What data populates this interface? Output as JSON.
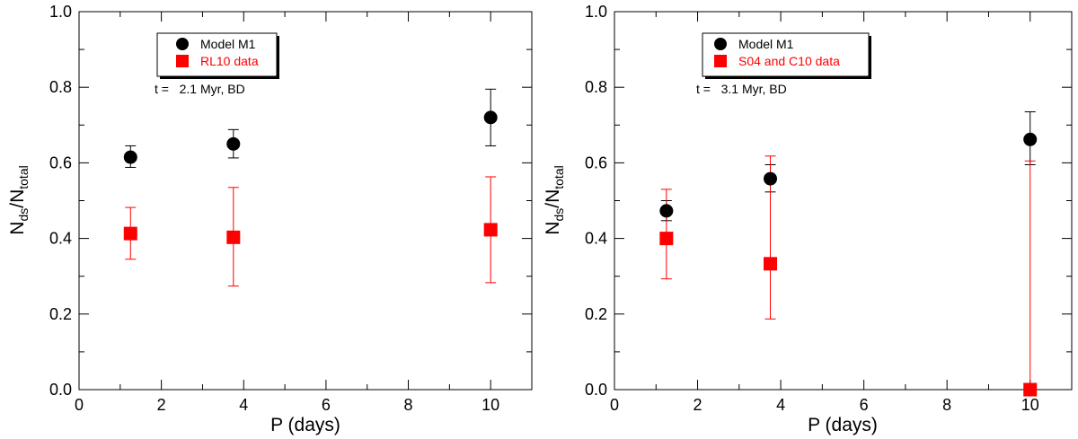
{
  "chart_data": [
    {
      "type": "scatter",
      "title": "",
      "xlabel": "P (days)",
      "ylabel": {
        "base": "N",
        "sub1": "ds",
        "sep": "/N",
        "sub2": "total"
      },
      "xlim": [
        0,
        11
      ],
      "ylim": [
        0,
        1.0
      ],
      "x_ticks": [
        "0",
        "2",
        "4",
        "6",
        "8",
        "10"
      ],
      "y_ticks": [
        "0.0",
        "0.2",
        "0.4",
        "0.6",
        "0.8",
        "1.0"
      ],
      "grid": false,
      "legend_position": "top-left",
      "annotation": "t =   2.1 Myr, BD",
      "series": [
        {
          "name": "Model M1",
          "marker": "circle",
          "color": "#000000",
          "points": [
            {
              "x": 1.25,
              "y": 0.615,
              "err_low": 0.588,
              "err_high": 0.645
            },
            {
              "x": 3.75,
              "y": 0.65,
              "err_low": 0.613,
              "err_high": 0.688
            },
            {
              "x": 10.0,
              "y": 0.72,
              "err_low": 0.645,
              "err_high": 0.795
            }
          ]
        },
        {
          "name": "RL10 data",
          "marker": "square",
          "color": "#ff0000",
          "points": [
            {
              "x": 1.25,
              "y": 0.413,
              "err_low": 0.345,
              "err_high": 0.482
            },
            {
              "x": 3.75,
              "y": 0.403,
              "err_low": 0.274,
              "err_high": 0.535
            },
            {
              "x": 10.0,
              "y": 0.423,
              "err_low": 0.283,
              "err_high": 0.563
            }
          ]
        }
      ]
    },
    {
      "type": "scatter",
      "title": "",
      "xlabel": "P (days)",
      "ylabel": {
        "base": "N",
        "sub1": "ds",
        "sep": "/N",
        "sub2": "total"
      },
      "xlim": [
        0,
        11
      ],
      "ylim": [
        0,
        1.0
      ],
      "x_ticks": [
        "0",
        "2",
        "4",
        "6",
        "8",
        "10"
      ],
      "y_ticks": [
        "0.0",
        "0.2",
        "0.4",
        "0.6",
        "0.8",
        "1.0"
      ],
      "grid": false,
      "legend_position": "top-left",
      "annotation": "t =   3.1 Myr, BD",
      "series": [
        {
          "name": "Model M1",
          "marker": "circle",
          "color": "#000000",
          "points": [
            {
              "x": 1.25,
              "y": 0.473,
              "err_low": 0.447,
              "err_high": 0.5
            },
            {
              "x": 3.75,
              "y": 0.558,
              "err_low": 0.523,
              "err_high": 0.595
            },
            {
              "x": 10.0,
              "y": 0.662,
              "err_low": 0.595,
              "err_high": 0.735
            }
          ]
        },
        {
          "name": "S04 and C10 data",
          "marker": "square",
          "color": "#ff0000",
          "points": [
            {
              "x": 1.25,
              "y": 0.4,
              "err_low": 0.293,
              "err_high": 0.53
            },
            {
              "x": 3.75,
              "y": 0.333,
              "err_low": 0.187,
              "err_high": 0.618
            },
            {
              "x": 10.0,
              "y": 0.0,
              "err_low": 0.0,
              "err_high": 0.605
            }
          ]
        }
      ]
    }
  ]
}
